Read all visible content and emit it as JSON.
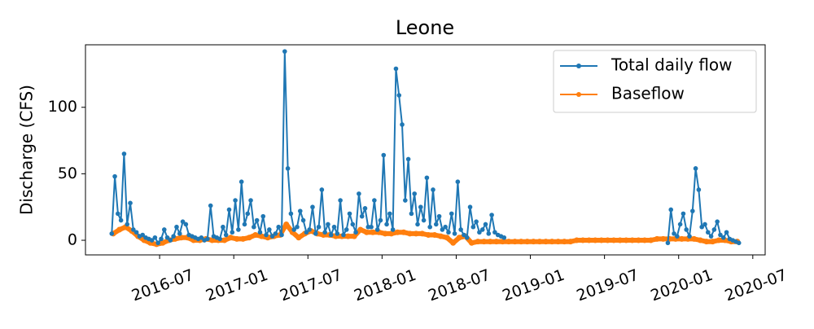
{
  "chart_data": {
    "type": "line",
    "title": "Leone",
    "y_label": "Discharge (CFS)",
    "xlim": [
      "2016-01",
      "2020-08"
    ],
    "ylim": [
      -11,
      147
    ],
    "xticks": [
      "2016-07",
      "2017-01",
      "2017-07",
      "2018-01",
      "2018-07",
      "2019-01",
      "2019-07",
      "2020-01",
      "2020-07"
    ],
    "yticks": [
      0,
      50,
      100
    ],
    "legend": "upper right",
    "grid": false,
    "series": [
      {
        "name": "Total daily flow",
        "color": "#1f77b4",
        "x": [
          "2016-03",
          "2016-03",
          "2016-03",
          "2016-03",
          "2016-04",
          "2016-04",
          "2016-04",
          "2016-04",
          "2016-05",
          "2016-05",
          "2016-05",
          "2016-05",
          "2016-06",
          "2016-06",
          "2016-06",
          "2016-06",
          "2016-07",
          "2016-07",
          "2016-07",
          "2016-07",
          "2016-08",
          "2016-08",
          "2016-08",
          "2016-08",
          "2016-09",
          "2016-09",
          "2016-09",
          "2016-09",
          "2016-10",
          "2016-10",
          "2016-10",
          "2016-10",
          "2016-11",
          "2016-11",
          "2016-11",
          "2016-11",
          "2016-12",
          "2016-12",
          "2016-12",
          "2016-12",
          "2017-01",
          "2017-01",
          "2017-01",
          "2017-01",
          "2017-02",
          "2017-02",
          "2017-02",
          "2017-02",
          "2017-03",
          "2017-03",
          "2017-03",
          "2017-03",
          "2017-04",
          "2017-04",
          "2017-04",
          "2017-04",
          "2017-05",
          "2017-05",
          "2017-05",
          "2017-05",
          "2017-06",
          "2017-06",
          "2017-06",
          "2017-06",
          "2017-07",
          "2017-07",
          "2017-07",
          "2017-07",
          "2017-08",
          "2017-08",
          "2017-08",
          "2017-08",
          "2017-09",
          "2017-09",
          "2017-09",
          "2017-09",
          "2017-10",
          "2017-10",
          "2017-10",
          "2017-10",
          "2017-11",
          "2017-11",
          "2017-11",
          "2017-11",
          "2017-12",
          "2017-12",
          "2017-12",
          "2017-12",
          "2018-01",
          "2018-01",
          "2018-01",
          "2018-01",
          "2018-02",
          "2018-02",
          "2018-02",
          "2018-02",
          "2018-03",
          "2018-03",
          "2018-03",
          "2018-03",
          "2018-04",
          "2018-04",
          "2018-04",
          "2018-04",
          "2018-05",
          "2018-05",
          "2018-05",
          "2018-05",
          "2018-06",
          "2018-06",
          "2018-06",
          "2018-06",
          "2018-07",
          "2018-07",
          "2018-07",
          "2018-07",
          "2018-08",
          "2018-08",
          "2018-08",
          "2018-08",
          "2018-09",
          "2018-09",
          "2018-09",
          "2018-09",
          "2018-10",
          "2018-10",
          "2018-10",
          "2018-10",
          "2019-06",
          "2019-12",
          "2019-12",
          "2019-12",
          "2019-12",
          "2020-01",
          "2020-01",
          "2020-01",
          "2020-01",
          "2020-02",
          "2020-02",
          "2020-02",
          "2020-02",
          "2020-03",
          "2020-03",
          "2020-03",
          "2020-03",
          "2020-04",
          "2020-04",
          "2020-04",
          "2020-04",
          "2020-05",
          "2020-05",
          "2020-05",
          "2020-05"
        ],
        "values": [
          5,
          48,
          20,
          15,
          65,
          12,
          28,
          8,
          6,
          3,
          4,
          2,
          1,
          0,
          2,
          -2,
          1,
          8,
          2,
          0,
          3,
          10,
          5,
          14,
          12,
          4,
          3,
          2,
          1,
          2,
          0,
          1,
          26,
          3,
          2,
          1,
          10,
          4,
          23,
          6,
          30,
          8,
          44,
          12,
          20,
          30,
          10,
          15,
          6,
          18,
          4,
          8,
          3,
          5,
          10,
          4,
          142,
          54,
          20,
          8,
          10,
          22,
          15,
          6,
          8,
          25,
          5,
          10,
          38,
          6,
          12,
          4,
          10,
          5,
          30,
          4,
          8,
          20,
          12,
          6,
          35,
          18,
          24,
          10,
          10,
          30,
          8,
          15,
          64,
          12,
          20,
          8,
          129,
          109,
          87,
          30,
          61,
          20,
          35,
          12,
          25,
          15,
          47,
          10,
          38,
          12,
          18,
          8,
          10,
          6,
          20,
          5,
          44,
          8,
          4,
          2,
          25,
          10,
          14,
          6,
          8,
          12,
          5,
          19,
          6,
          4,
          3,
          2,
          null,
          -2,
          23,
          5,
          3,
          12,
          20,
          8,
          3,
          22,
          54,
          38,
          10,
          12,
          6,
          3,
          8,
          14,
          4,
          2,
          6,
          1,
          0,
          -1,
          -2
        ]
      },
      {
        "name": "Baseflow",
        "color": "#ff7f0e",
        "x": [
          "2016-03",
          "2016-03",
          "2016-04",
          "2016-04",
          "2016-05",
          "2016-05",
          "2016-06",
          "2016-06",
          "2016-07",
          "2016-07",
          "2016-08",
          "2016-08",
          "2016-09",
          "2016-09",
          "2016-10",
          "2016-10",
          "2016-11",
          "2016-11",
          "2016-12",
          "2016-12",
          "2017-01",
          "2017-01",
          "2017-02",
          "2017-02",
          "2017-03",
          "2017-03",
          "2017-04",
          "2017-04",
          "2017-05",
          "2017-05",
          "2017-06",
          "2017-06",
          "2017-07",
          "2017-07",
          "2017-08",
          "2017-08",
          "2017-09",
          "2017-09",
          "2017-10",
          "2017-10",
          "2017-11",
          "2017-11",
          "2017-12",
          "2017-12",
          "2018-01",
          "2018-01",
          "2018-02",
          "2018-02",
          "2018-03",
          "2018-03",
          "2018-04",
          "2018-04",
          "2018-05",
          "2018-05",
          "2018-06",
          "2018-06",
          "2018-07",
          "2018-07",
          "2018-08",
          "2018-08",
          "2018-09",
          "2018-09",
          "2018-10",
          "2018-10",
          "2018-11",
          "2018-11",
          "2018-12",
          "2018-12",
          "2019-01",
          "2019-01",
          "2019-02",
          "2019-02",
          "2019-03",
          "2019-03",
          "2019-04",
          "2019-04",
          "2019-05",
          "2019-05",
          "2019-06",
          "2019-06",
          "2019-07",
          "2019-07",
          "2019-08",
          "2019-08",
          "2019-09",
          "2019-09",
          "2019-10",
          "2019-10",
          "2019-11",
          "2019-11",
          "2019-12",
          "2019-12",
          "2020-01",
          "2020-01",
          "2020-02",
          "2020-02",
          "2020-03",
          "2020-03",
          "2020-04",
          "2020-04",
          "2020-05",
          "2020-05"
        ],
        "values": [
          5,
          8,
          10,
          7,
          3,
          0,
          -2,
          -3,
          -2,
          0,
          1,
          2,
          2,
          0,
          0,
          1,
          0,
          0,
          0,
          2,
          1,
          1,
          2,
          4,
          3,
          2,
          3,
          4,
          12,
          6,
          2,
          5,
          7,
          5,
          4,
          4,
          3,
          3,
          3,
          3,
          8,
          6,
          6,
          6,
          5,
          5,
          6,
          6,
          5,
          5,
          5,
          4,
          4,
          3,
          2,
          -2,
          2,
          3,
          -2,
          -1,
          -1,
          -1,
          -1,
          -1,
          -1,
          -1,
          -1,
          -1,
          -1,
          -1,
          -1,
          -1,
          -1,
          -1,
          -1,
          0,
          0,
          0,
          0,
          0,
          0,
          0,
          0,
          0,
          0,
          0,
          0,
          0,
          1,
          1,
          1,
          1,
          1,
          1,
          1,
          0,
          -1,
          -1,
          0,
          0,
          -1,
          -1
        ]
      }
    ]
  }
}
